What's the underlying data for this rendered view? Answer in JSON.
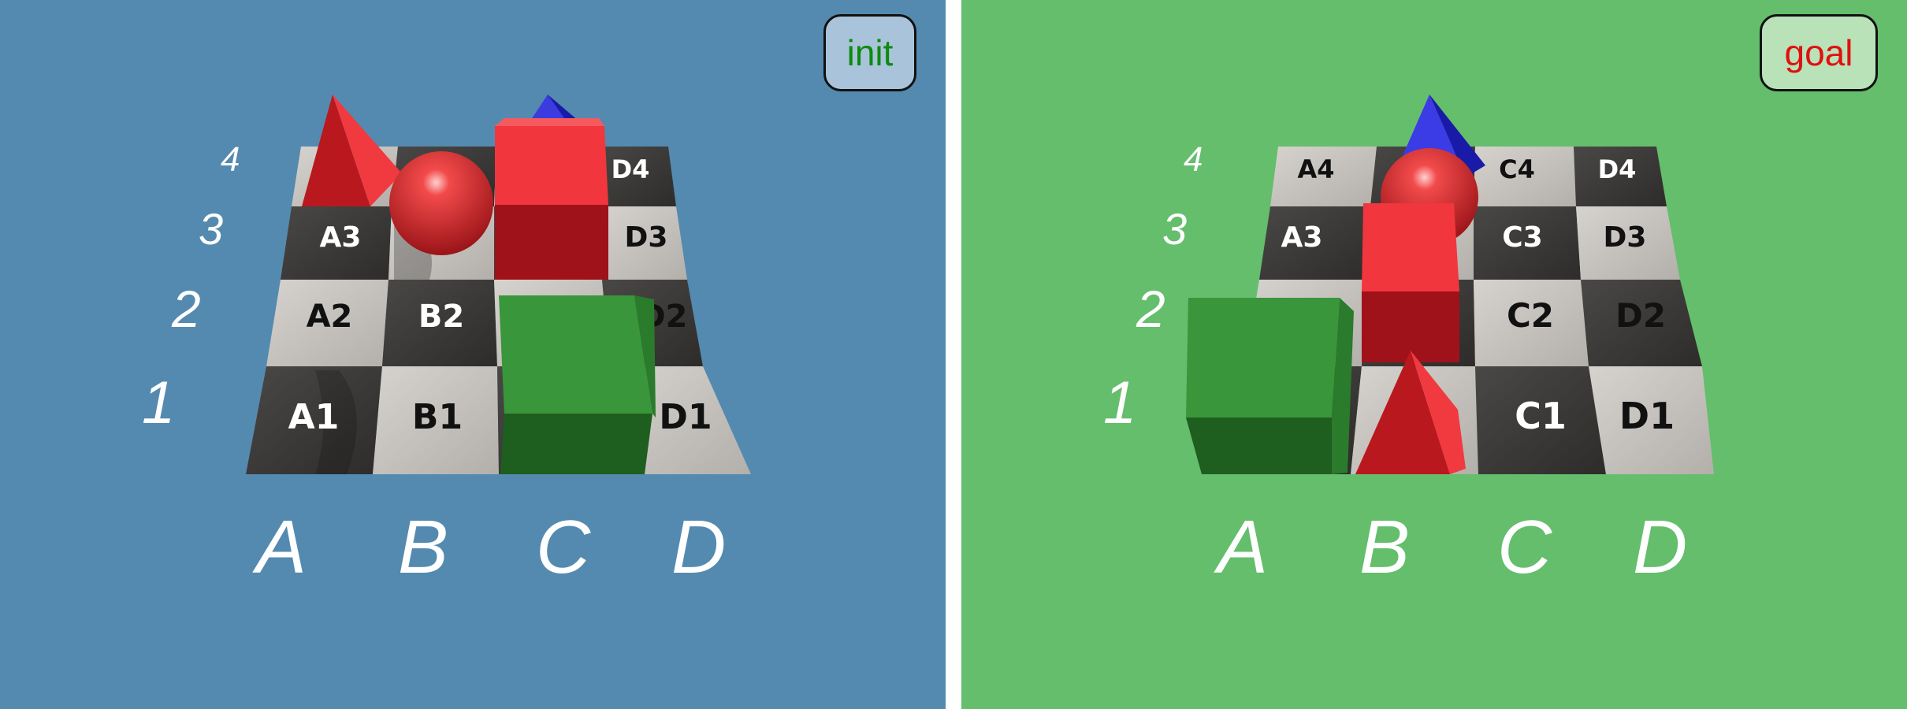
{
  "colors": {
    "init_bg": "#548AAF",
    "goal_bg": "#64BE6C",
    "init_badge_bg": "#A9C4DA",
    "goal_badge_bg": "#B9E2B9",
    "init_badge_text": "#0E8A0E",
    "goal_badge_text": "#E01010",
    "red_object": "#E8303A",
    "blue_object": "#2A2ACF",
    "green_object": "#2E8A2E",
    "tile_light": "#C9C6C2",
    "tile_dark": "#3C3A38"
  },
  "init_panel": {
    "badge": "init",
    "rows": [
      "1",
      "2",
      "3",
      "4"
    ],
    "columns": [
      "A",
      "B",
      "C",
      "D"
    ],
    "cells": {
      "A1": "A1",
      "B1": "B1",
      "D1": "D1",
      "A2": "A2",
      "B2": "B2",
      "D2": "D2",
      "A3": "A3",
      "D3": "D3",
      "D4": "D4"
    },
    "objects": [
      "red-pyramid",
      "red-sphere",
      "blue-pyramid",
      "red-cube",
      "green-cube"
    ]
  },
  "goal_panel": {
    "badge": "goal",
    "rows": [
      "1",
      "2",
      "3",
      "4"
    ],
    "columns": [
      "A",
      "B",
      "C",
      "D"
    ],
    "cells": {
      "C1": "C1",
      "D1": "D1",
      "C2": "C2",
      "D2": "D2",
      "A3": "A3",
      "C3": "C3",
      "D3": "D3",
      "A4": "A4",
      "C4": "C4",
      "D4": "D4"
    },
    "objects": [
      "blue-pyramid",
      "red-sphere",
      "red-cube",
      "red-pyramid",
      "green-cube"
    ]
  }
}
